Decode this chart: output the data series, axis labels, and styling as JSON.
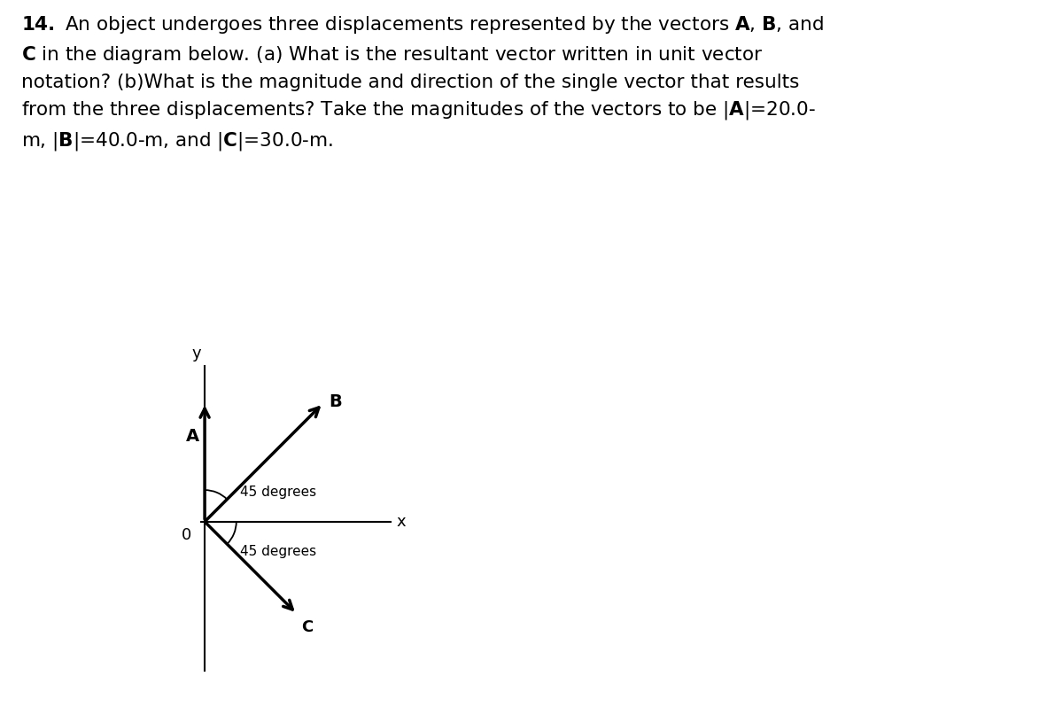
{
  "background_color": "#ffffff",
  "text_color": "#000000",
  "vector_color": "#000000",
  "axis_color": "#000000",
  "label_A": "A",
  "label_B": "B",
  "label_C": "C",
  "label_0": "0",
  "label_x": "x",
  "label_y": "y",
  "angle_label_1": "45 degrees",
  "angle_label_2": "45 degrees",
  "fig_width": 12.0,
  "fig_height": 8.07,
  "dpi": 100,
  "text_line1": "14. An object undergoes three displacements represented by the vectors A, B, and",
  "text_line2": "C in the diagram below. (a) What is the resultant vector written in unit vector",
  "text_line3": "notation? (b)What is the magnitude and direction of the single vector that results",
  "text_line4": "from the three displacements? Take the magnitudes of the vectors to be |A|=20.0-",
  "text_line5": "m, |B|=40.0-m, and |C|=30.0-m."
}
